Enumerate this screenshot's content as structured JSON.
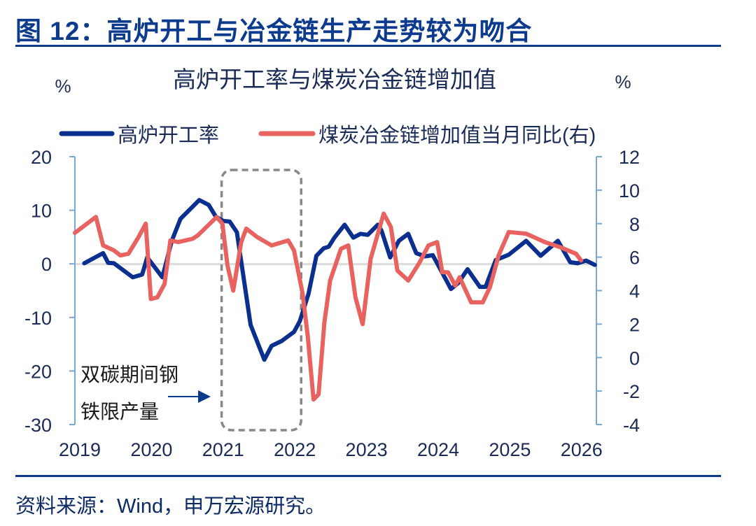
{
  "figure": {
    "title": "图 12：高炉开工与冶金链生产走势较为吻合",
    "source": "资料来源：Wind，申万宏源研究。"
  },
  "chart_data": {
    "type": "line",
    "title": "高炉开工率与煤炭冶金链增加值",
    "left_unit": "%",
    "right_unit": "%",
    "legend_position": "top",
    "grid": false,
    "x_ticks": [
      "2019",
      "2020",
      "2021",
      "2022",
      "2023",
      "2024",
      "2025",
      "2026"
    ],
    "xlim": [
      2019,
      2026.3
    ],
    "y_left": {
      "lim": [
        -30,
        20
      ],
      "ticks": [
        "20",
        "10",
        "0",
        "-10",
        "-20",
        "-30"
      ]
    },
    "y_right": {
      "lim": [
        -4,
        12
      ],
      "ticks": [
        "12",
        "10",
        "8",
        "6",
        "4",
        "2",
        "0",
        "-2",
        "-4"
      ]
    },
    "annotation": {
      "lines": [
        "双碳期间钢",
        "铁限产量"
      ],
      "highlight_range": [
        2021.0,
        2022.1
      ]
    },
    "series": [
      {
        "name": "高炉开工率",
        "axis": "left",
        "color": "#0a2f8f",
        "points": [
          [
            2019.13,
            0.1
          ],
          [
            2019.39,
            2.0
          ],
          [
            2019.46,
            0.2
          ],
          [
            2019.54,
            0.1
          ],
          [
            2019.8,
            -2.5
          ],
          [
            2019.93,
            -2.0
          ],
          [
            2020.0,
            1.2
          ],
          [
            2020.21,
            -2.5
          ],
          [
            2020.34,
            4.3
          ],
          [
            2020.46,
            8.4
          ],
          [
            2020.72,
            11.9
          ],
          [
            2020.85,
            11.0
          ],
          [
            2020.95,
            8.8
          ],
          [
            2021.05,
            8.0
          ],
          [
            2021.14,
            7.9
          ],
          [
            2021.24,
            5.9
          ],
          [
            2021.43,
            -11.4
          ],
          [
            2021.62,
            -17.9
          ],
          [
            2021.72,
            -15.3
          ],
          [
            2021.86,
            -14.4
          ],
          [
            2022.03,
            -12.7
          ],
          [
            2022.11,
            -10.7
          ],
          [
            2022.23,
            -5.6
          ],
          [
            2022.34,
            1.5
          ],
          [
            2022.44,
            2.9
          ],
          [
            2022.51,
            3.2
          ],
          [
            2022.59,
            4.9
          ],
          [
            2022.73,
            7.3
          ],
          [
            2022.85,
            4.9
          ],
          [
            2022.95,
            5.6
          ],
          [
            2023.05,
            5.4
          ],
          [
            2023.19,
            7.3
          ],
          [
            2023.24,
            6.2
          ],
          [
            2023.36,
            1.2
          ],
          [
            2023.48,
            4.3
          ],
          [
            2023.61,
            5.6
          ],
          [
            2023.72,
            2.0
          ],
          [
            2023.84,
            1.4
          ],
          [
            2023.95,
            1.6
          ],
          [
            2024.09,
            -1.9
          ],
          [
            2024.2,
            -4.7
          ],
          [
            2024.3,
            -3.6
          ],
          [
            2024.43,
            -1.0
          ],
          [
            2024.6,
            -4.3
          ],
          [
            2024.68,
            -4.3
          ],
          [
            2024.82,
            0.7
          ],
          [
            2025.0,
            1.7
          ],
          [
            2025.24,
            4.3
          ],
          [
            2025.44,
            1.5
          ],
          [
            2025.68,
            4.3
          ],
          [
            2025.85,
            0.3
          ],
          [
            2025.95,
            0.1
          ],
          [
            2026.07,
            0.6
          ],
          [
            2026.19,
            -0.2
          ]
        ]
      },
      {
        "name": "煤炭冶金链增加值当月同比(右)",
        "axis": "right",
        "color": "#e8625f",
        "points": [
          [
            2019.0,
            7.45
          ],
          [
            2019.29,
            8.4
          ],
          [
            2019.39,
            6.7
          ],
          [
            2019.54,
            6.4
          ],
          [
            2019.63,
            6.1
          ],
          [
            2019.74,
            6.2
          ],
          [
            2019.88,
            7.2
          ],
          [
            2019.98,
            8.0
          ],
          [
            2020.05,
            3.5
          ],
          [
            2020.14,
            3.6
          ],
          [
            2020.24,
            4.4
          ],
          [
            2020.32,
            7.0
          ],
          [
            2020.43,
            6.9
          ],
          [
            2020.63,
            7.1
          ],
          [
            2020.7,
            7.3
          ],
          [
            2020.82,
            7.8
          ],
          [
            2020.96,
            8.4
          ],
          [
            2021.04,
            8.0
          ],
          [
            2021.11,
            5.5
          ],
          [
            2021.19,
            4.0
          ],
          [
            2021.3,
            6.9
          ],
          [
            2021.37,
            7.7
          ],
          [
            2021.52,
            7.2
          ],
          [
            2021.72,
            6.7
          ],
          [
            2021.95,
            7.0
          ],
          [
            2022.03,
            6.4
          ],
          [
            2022.15,
            3.8
          ],
          [
            2022.22,
            1.3
          ],
          [
            2022.3,
            -2.5
          ],
          [
            2022.37,
            -2.2
          ],
          [
            2022.45,
            2.1
          ],
          [
            2022.53,
            4.6
          ],
          [
            2022.68,
            6.5
          ],
          [
            2022.78,
            6.7
          ],
          [
            2022.88,
            3.6
          ],
          [
            2022.98,
            2.0
          ],
          [
            2023.09,
            5.9
          ],
          [
            2023.27,
            8.6
          ],
          [
            2023.37,
            7.8
          ],
          [
            2023.46,
            5.2
          ],
          [
            2023.61,
            4.6
          ],
          [
            2023.77,
            5.7
          ],
          [
            2023.89,
            6.7
          ],
          [
            2024.01,
            6.9
          ],
          [
            2024.08,
            5.1
          ],
          [
            2024.16,
            5.1
          ],
          [
            2024.26,
            4.3
          ],
          [
            2024.32,
            4.8
          ],
          [
            2024.48,
            3.3
          ],
          [
            2024.64,
            3.3
          ],
          [
            2024.74,
            4.2
          ],
          [
            2024.86,
            6.1
          ],
          [
            2025.0,
            7.5
          ],
          [
            2025.24,
            7.4
          ],
          [
            2025.5,
            6.9
          ],
          [
            2025.71,
            6.6
          ],
          [
            2025.93,
            6.2
          ],
          [
            2026.0,
            5.8
          ]
        ]
      }
    ]
  }
}
